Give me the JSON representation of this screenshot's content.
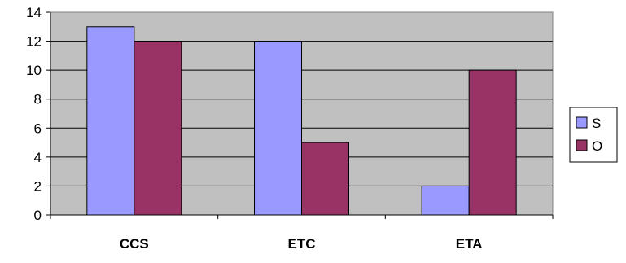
{
  "chart_data": {
    "type": "bar",
    "categories": [
      "CCS",
      "ETC",
      "ETA"
    ],
    "series": [
      {
        "name": "S",
        "values": [
          13,
          12,
          2
        ],
        "color": "#9999ff"
      },
      {
        "name": "O",
        "values": [
          12,
          5,
          10
        ],
        "color": "#993366"
      }
    ],
    "ylim": [
      0,
      14
    ],
    "yticks": [
      0,
      2,
      4,
      6,
      8,
      10,
      12,
      14
    ],
    "ytick_labels": [
      "0",
      "2",
      "4",
      "6",
      "8",
      "10",
      "12",
      "14"
    ],
    "grid": true,
    "plot_background": "#c0c0c0",
    "legend_placement": "right"
  }
}
